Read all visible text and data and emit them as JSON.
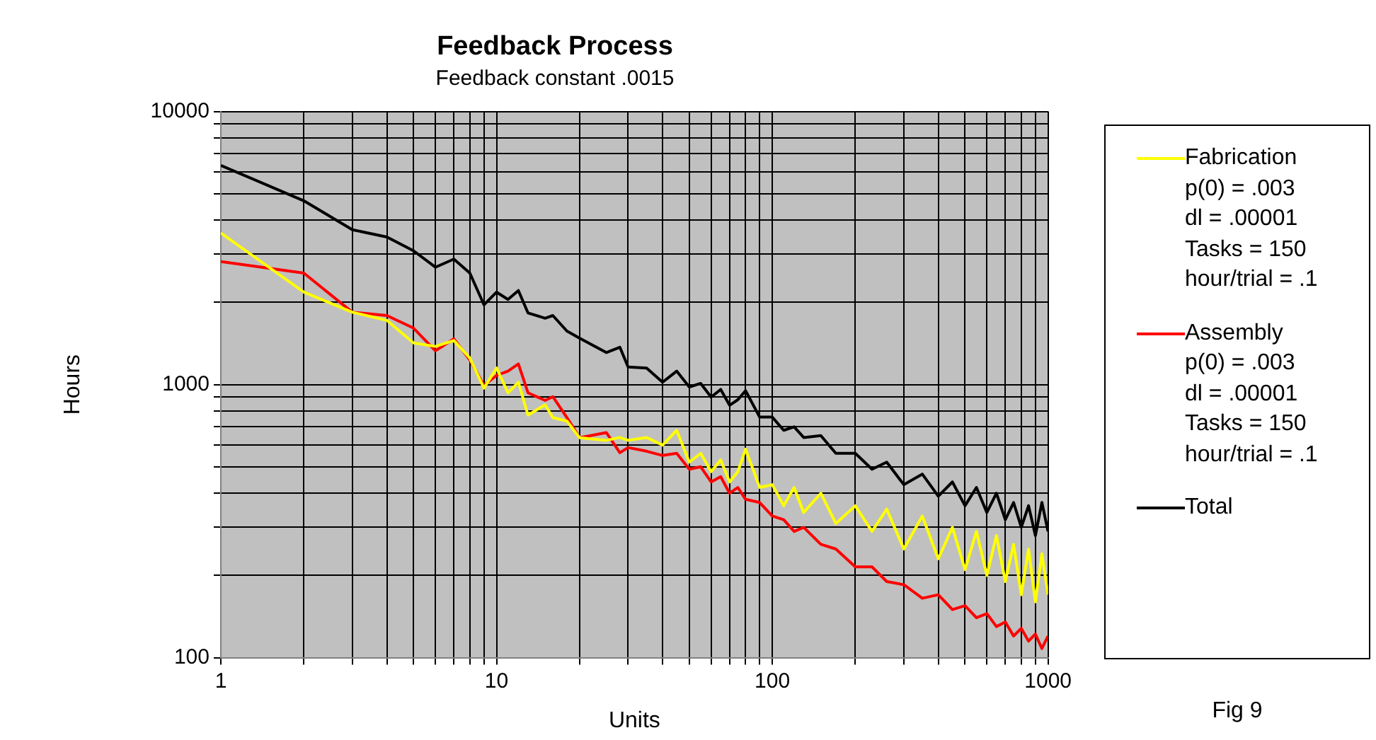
{
  "chart_data": {
    "type": "line",
    "title": "Feedback Process",
    "subtitle": "Feedback constant .0015",
    "xlabel": "Units",
    "ylabel": "Hours",
    "log": "xy",
    "grid": true,
    "legend": "right",
    "annotations": [
      "Fig 9"
    ],
    "xlim": [
      1,
      1000
    ],
    "ylim": [
      100,
      10000
    ],
    "xticks": [
      1,
      {
        "value": 2,
        "label": null
      },
      {
        "value": 3,
        "label": null
      },
      {
        "value": 4,
        "label": null
      },
      {
        "value": 5,
        "label": null
      },
      {
        "value": 6,
        "label": null
      },
      {
        "value": 7,
        "label": null
      },
      {
        "value": 8,
        "label": null
      },
      {
        "value": 9,
        "label": null
      },
      10,
      {
        "value": 20,
        "label": null
      },
      {
        "value": 30,
        "label": null
      },
      {
        "value": 40,
        "label": null
      },
      {
        "value": 50,
        "label": null
      },
      {
        "value": 60,
        "label": null
      },
      {
        "value": 70,
        "label": null
      },
      {
        "value": 80,
        "label": null
      },
      {
        "value": 90,
        "label": null
      },
      100,
      {
        "value": 200,
        "label": null
      },
      {
        "value": 300,
        "label": null
      },
      {
        "value": 400,
        "label": null
      },
      {
        "value": 500,
        "label": null
      },
      {
        "value": 600,
        "label": null
      },
      {
        "value": 700,
        "label": null
      },
      {
        "value": 800,
        "label": null
      },
      {
        "value": 900,
        "label": null
      },
      1000
    ],
    "yticks": [
      100,
      {
        "value": 200,
        "label": null
      },
      {
        "value": 300,
        "label": null
      },
      {
        "value": 400,
        "label": null
      },
      {
        "value": 500,
        "label": null
      },
      {
        "value": 600,
        "label": null
      },
      {
        "value": 700,
        "label": null
      },
      {
        "value": 800,
        "label": null
      },
      {
        "value": 900,
        "label": null
      },
      1000,
      {
        "value": 2000,
        "label": null
      },
      {
        "value": 3000,
        "label": null
      },
      {
        "value": 4000,
        "label": null
      },
      {
        "value": 5000,
        "label": null
      },
      {
        "value": 6000,
        "label": null
      },
      {
        "value": 7000,
        "label": null
      },
      {
        "value": 8000,
        "label": null
      },
      {
        "value": 9000,
        "label": null
      },
      10000
    ],
    "x": [
      1,
      2,
      3,
      4,
      5,
      6,
      7,
      8,
      9,
      10,
      11,
      12,
      13,
      15,
      16,
      18,
      20,
      25,
      28,
      30,
      35,
      40,
      45,
      50,
      55,
      60,
      65,
      70,
      75,
      80,
      90,
      100,
      110,
      120,
      130,
      150,
      170,
      200,
      230,
      260,
      300,
      350,
      400,
      450,
      500,
      550,
      600,
      650,
      700,
      750,
      800,
      850,
      900,
      950,
      1000
    ],
    "series": [
      {
        "name": "Fabrication\np(0) = .003\ndl = .00001\nTasks = 150\nhour/trial = .1",
        "color": "#ffff00",
        "values": [
          3590,
          2180,
          1840,
          1720,
          1420,
          1380,
          1450,
          1250,
          970,
          1150,
          933,
          1020,
          773,
          843,
          757,
          735,
          639,
          625,
          640,
          625,
          640,
          600,
          680,
          520,
          560,
          480,
          530,
          440,
          480,
          580,
          420,
          430,
          360,
          420,
          340,
          400,
          310,
          360,
          290,
          350,
          250,
          330,
          230,
          300,
          210,
          290,
          200,
          280,
          190,
          260,
          170,
          250,
          160,
          240,
          170
        ]
      },
      {
        "name": "Assembly\np(0) = .003\ndl = .00001\nTasks = 150\nhour/trial = .1",
        "color": "#ff0000",
        "values": [
          2820,
          2560,
          1840,
          1790,
          1610,
          1330,
          1470,
          1230,
          993,
          1080,
          1120,
          1190,
          933,
          875,
          903,
          757,
          639,
          667,
          563,
          588,
          570,
          550,
          560,
          490,
          500,
          440,
          460,
          400,
          420,
          380,
          370,
          330,
          320,
          290,
          300,
          260,
          250,
          215,
          215,
          190,
          185,
          165,
          170,
          150,
          155,
          140,
          145,
          130,
          135,
          120,
          128,
          115,
          122,
          108,
          120
        ]
      },
      {
        "name": "Total",
        "color": "#000000",
        "values": [
          6350,
          4710,
          3690,
          3470,
          3090,
          2690,
          2880,
          2560,
          1960,
          2180,
          2050,
          2210,
          1830,
          1750,
          1790,
          1570,
          1480,
          1310,
          1370,
          1160,
          1150,
          1020,
          1120,
          980,
          1010,
          900,
          960,
          840,
          880,
          950,
          760,
          760,
          680,
          700,
          640,
          650,
          560,
          560,
          490,
          520,
          430,
          470,
          390,
          440,
          360,
          420,
          340,
          400,
          320,
          370,
          300,
          360,
          280,
          370,
          290
        ]
      }
    ]
  }
}
